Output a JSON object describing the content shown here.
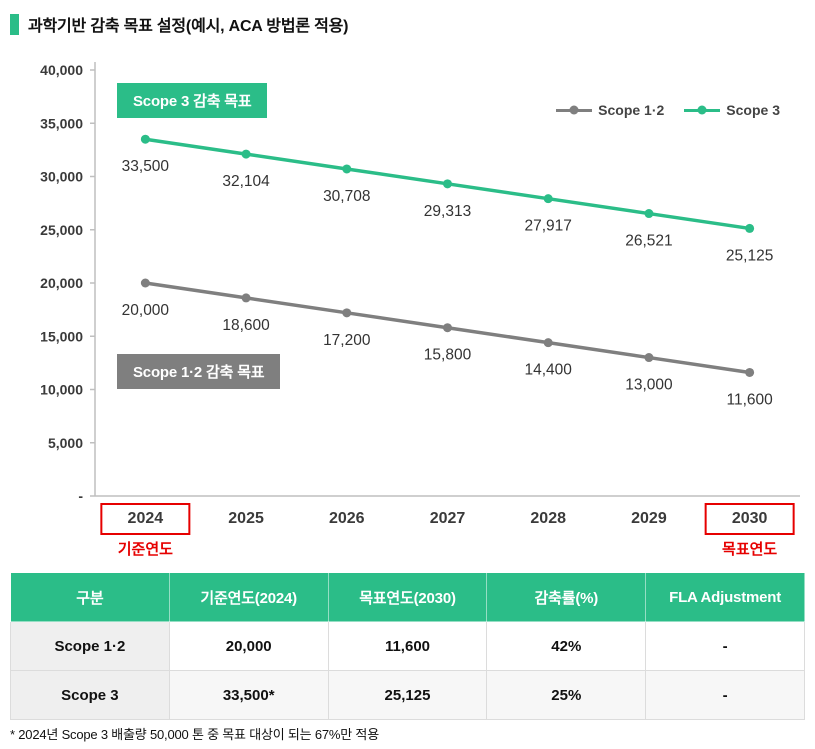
{
  "header": {
    "title": "과학기반 감축 목표 설정(예시, ACA 방법론 적용)"
  },
  "chart_data": {
    "type": "line",
    "categories": [
      "2024",
      "2025",
      "2026",
      "2027",
      "2028",
      "2029",
      "2030"
    ],
    "series": [
      {
        "name": "Scope 1·2",
        "color": "#7f7f7f",
        "values": [
          20000,
          18600,
          17200,
          15800,
          14400,
          13000,
          11600
        ]
      },
      {
        "name": "Scope 3",
        "color": "#2bbd88",
        "values": [
          33500,
          32104,
          30708,
          29313,
          27917,
          26521,
          25125
        ]
      }
    ],
    "ylim": [
      0,
      40000
    ],
    "ytick_interval": 5000,
    "ytick_labels": [
      "-",
      "5,000",
      "10,000",
      "15,000",
      "20,000",
      "25,000",
      "30,000",
      "35,000",
      "40,000"
    ],
    "grid": false,
    "legend_position": "top-right",
    "annotations": {
      "scope3_badge": "Scope 3 감축 목표",
      "scope12_badge": "Scope 1·2 감축 목표",
      "base_year": "2024",
      "base_year_label": "기준연도",
      "target_year": "2030",
      "target_year_label": "목표연도"
    }
  },
  "table": {
    "headers": [
      "구분",
      "기준연도(2024)",
      "목표연도(2030)",
      "감축률(%)",
      "FLA Adjustment"
    ],
    "rows": [
      [
        "Scope 1·2",
        "20,000",
        "11,600",
        "42%",
        "-"
      ],
      [
        "Scope 3",
        "33,500*",
        "25,125",
        "25%",
        "-"
      ]
    ]
  },
  "footnote": "* 2024년 Scope 3 배출량 50,000 톤 중 목표 대상이 되는 67%만 적용",
  "colors": {
    "green": "#2bbd88",
    "gray": "#7f7f7f",
    "red": "#e60000"
  }
}
